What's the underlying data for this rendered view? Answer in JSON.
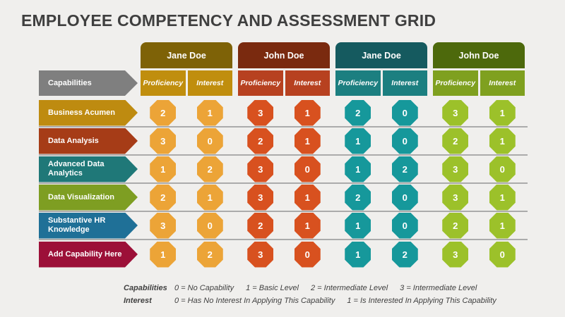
{
  "title": "EMPLOYEE COMPETENCY AND ASSESSMENT GRID",
  "colors": {
    "background": "#F0EFED",
    "title_text": "#3F3F3F",
    "separator": "#ABABAB",
    "legend_text": "#404040"
  },
  "capabilities": {
    "label": "Capabilities",
    "color": "#7F7F7F"
  },
  "groups": [
    {
      "name": "Jane Doe",
      "header_color": "#7E6207",
      "sub_color": "#C08E0E",
      "octagon_color": "#ECA437",
      "columns": [
        "Proficiency",
        "Interest"
      ]
    },
    {
      "name": "John Doe",
      "header_color": "#7A2A0F",
      "sub_color": "#B74120",
      "octagon_color": "#D8511F",
      "columns": [
        "Proficiency",
        "Interest"
      ]
    },
    {
      "name": "Jane Doe",
      "header_color": "#155A5F",
      "sub_color": "#1C7F80",
      "octagon_color": "#16989B",
      "columns": [
        "Proficiency",
        "Interest"
      ]
    },
    {
      "name": "John Doe",
      "header_color": "#4D690C",
      "sub_color": "#7FA01F",
      "octagon_color": "#9CC12A",
      "columns": [
        "Proficiency",
        "Interest"
      ]
    }
  ],
  "rows": [
    {
      "label": "Business Acumen",
      "color": "#BE8B10",
      "values": [
        "2",
        "1",
        "3",
        "1",
        "2",
        "0",
        "3",
        "1"
      ]
    },
    {
      "label": "Data Analysis",
      "color": "#A63C17",
      "values": [
        "3",
        "0",
        "2",
        "1",
        "1",
        "0",
        "2",
        "1"
      ]
    },
    {
      "label": "Advanced Data Analytics",
      "color": "#1F7878",
      "values": [
        "1",
        "2",
        "3",
        "0",
        "1",
        "2",
        "3",
        "0"
      ]
    },
    {
      "label": "Data Visualization",
      "color": "#7E9E22",
      "values": [
        "2",
        "1",
        "3",
        "1",
        "2",
        "0",
        "3",
        "1"
      ]
    },
    {
      "label": "Substantive HR Knowledge",
      "color": "#1F7097",
      "values": [
        "3",
        "0",
        "2",
        "1",
        "1",
        "0",
        "2",
        "1"
      ]
    },
    {
      "label": "Add Capability Here",
      "color": "#9C1038",
      "values": [
        "1",
        "2",
        "3",
        "0",
        "1",
        "2",
        "3",
        "0"
      ]
    }
  ],
  "legend": [
    {
      "term": "Capabilities",
      "items": [
        "0 = No Capability",
        "1 = Basic Level",
        "2 = Intermediate Level",
        "3 = Intermediate Level"
      ]
    },
    {
      "term": "Interest",
      "items": [
        "0 = Has No Interest In Applying This Capability",
        "1 = Is Interested In Applying This Capability"
      ]
    }
  ]
}
